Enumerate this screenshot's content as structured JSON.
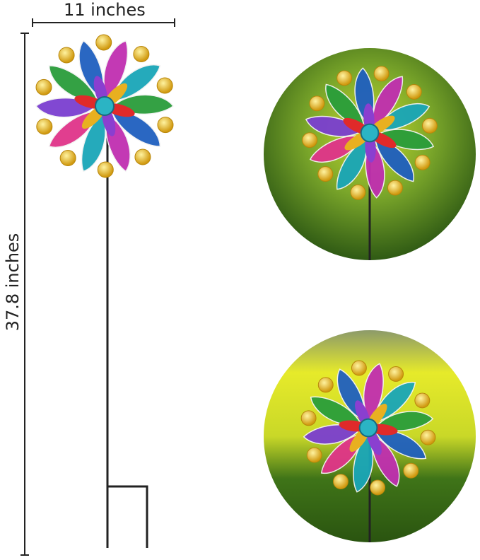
{
  "dimensions": {
    "width_label": "11 inches",
    "height_label": "37.8 inches"
  },
  "colors": {
    "stake": "#222222",
    "background_green": "#4d7a1e",
    "background_yellow": "#e8e62a",
    "petal_colors": [
      "#2a9d3a",
      "#1f5fbf",
      "#c02fb0",
      "#1aa6b8",
      "#e0348a",
      "#7b3fd0"
    ],
    "ball": "#e6b41e",
    "center": "#2bb4c4"
  }
}
